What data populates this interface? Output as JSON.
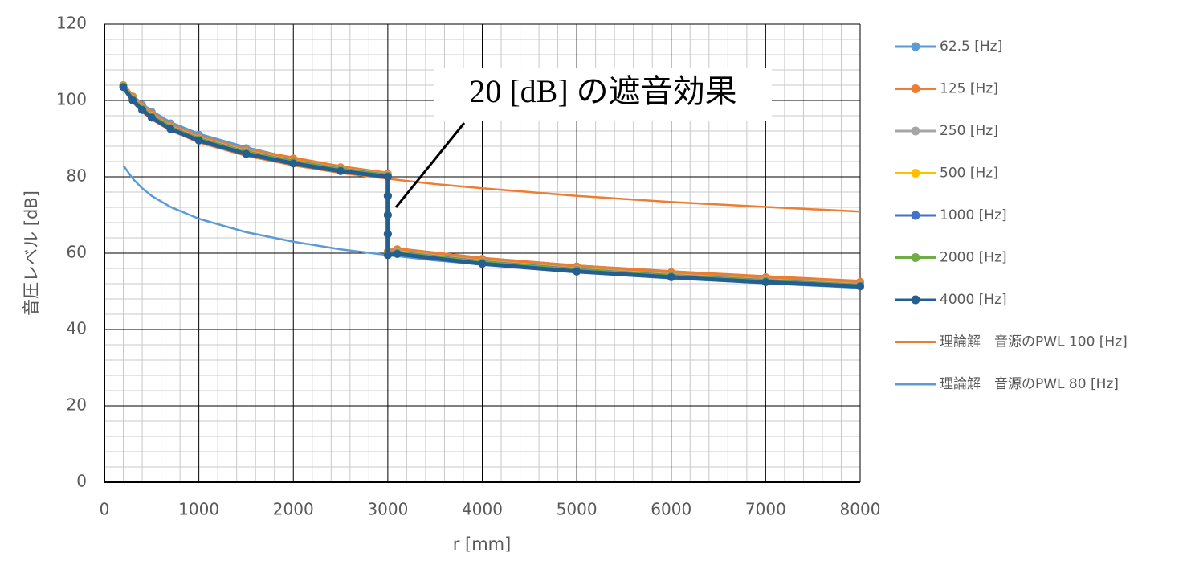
{
  "chart_data": {
    "type": "line",
    "xlabel": "r [mm]",
    "ylabel": "音圧レベル [dB]",
    "annotation": "20 [dB] の遮音効果",
    "xlim": [
      0,
      8000
    ],
    "xticks": [
      0,
      1000,
      2000,
      3000,
      4000,
      5000,
      6000,
      7000,
      8000
    ],
    "ylim": [
      0,
      120
    ],
    "yticks": [
      0,
      20,
      40,
      60,
      80,
      100,
      120
    ],
    "grid": true,
    "minor_grid": true,
    "legend": "right",
    "x": [
      200,
      300,
      400,
      500,
      700,
      1000,
      1500,
      2000,
      2500,
      3000,
      3000,
      3000,
      3000,
      3000,
      3100,
      4000,
      5000,
      6000,
      7000,
      8000
    ],
    "series": [
      {
        "name": "理論解　音源のPWL 100 [Hz]",
        "color": "#ed7d31",
        "markers": false,
        "x": [
          200,
          300,
          400,
          500,
          700,
          1000,
          1500,
          2000,
          2500,
          3000,
          3500,
          4000,
          5000,
          6000,
          7000,
          8000
        ],
        "values": [
          103.0,
          99.5,
          97.0,
          95.0,
          92.1,
          89.0,
          85.5,
          83.0,
          81.0,
          79.5,
          78.1,
          77.0,
          75.0,
          73.4,
          72.1,
          70.9
        ]
      },
      {
        "name": "理論解　音源のPWL 80 [Hz]",
        "color": "#5b9bd5",
        "markers": false,
        "x": [
          200,
          300,
          400,
          500,
          700,
          1000,
          1500,
          2000,
          2500,
          3000,
          3500,
          4000,
          5000,
          6000,
          7000,
          8000
        ],
        "values": [
          83.0,
          79.5,
          77.0,
          75.0,
          72.1,
          69.0,
          65.5,
          63.0,
          61.0,
          59.5,
          58.1,
          57.0,
          55.0,
          53.4,
          52.1,
          50.9
        ]
      },
      {
        "name": "62.5 [Hz]",
        "color": "#5b9bd5",
        "markers": true,
        "values": [
          104,
          101,
          98.8,
          97,
          94,
          91,
          87.5,
          84.5,
          82.3,
          80.6,
          75,
          70,
          65,
          60,
          61,
          58.5,
          56.5,
          55,
          53.5,
          52.2
        ]
      },
      {
        "name": "125 [Hz]",
        "color": "#ed7d31",
        "markers": true,
        "values": [
          104,
          101,
          98.5,
          96.5,
          93.5,
          90.5,
          87,
          84.8,
          82.5,
          80.8,
          75,
          70,
          65,
          60.5,
          61,
          58.5,
          56.5,
          55,
          53.7,
          52.5
        ]
      },
      {
        "name": "250 [Hz]",
        "color": "#a5a5a5",
        "markers": true,
        "values": [
          103.8,
          100.5,
          98,
          96,
          93,
          90,
          86.6,
          84,
          82,
          80.5,
          75,
          70,
          65,
          60,
          60.3,
          57.8,
          55.8,
          54.2,
          52.9,
          51.7
        ]
      },
      {
        "name": "500 [Hz]",
        "color": "#ffc000",
        "markers": true,
        "values": [
          103.8,
          100.4,
          97.9,
          95.9,
          92.9,
          89.9,
          86.5,
          84,
          82,
          80.4,
          75,
          70,
          65,
          60,
          60.2,
          57.7,
          55.7,
          54.1,
          52.8,
          51.6
        ]
      },
      {
        "name": "1000 [Hz]",
        "color": "#4472c4",
        "markers": true,
        "values": [
          103.7,
          100.3,
          97.8,
          95.8,
          92.8,
          89.8,
          86.4,
          83.9,
          81.9,
          80.3,
          75,
          70,
          65,
          60,
          60.1,
          57.6,
          55.6,
          54,
          52.7,
          51.5
        ]
      },
      {
        "name": "2000 [Hz]",
        "color": "#70ad47",
        "markers": true,
        "values": [
          103.7,
          100.2,
          97.7,
          95.7,
          92.7,
          89.7,
          86.3,
          83.8,
          81.8,
          80.2,
          75,
          70,
          65,
          60,
          60,
          57.5,
          55.5,
          53.9,
          52.6,
          51.4
        ]
      },
      {
        "name": "4000 [Hz]",
        "color": "#255e91",
        "markers": true,
        "values": [
          103.5,
          100,
          97.5,
          95.5,
          92.5,
          89.5,
          86,
          83.5,
          81.5,
          80,
          75,
          70,
          65,
          59.5,
          59.8,
          57.2,
          55.2,
          53.7,
          52.4,
          51.3
        ]
      }
    ]
  }
}
